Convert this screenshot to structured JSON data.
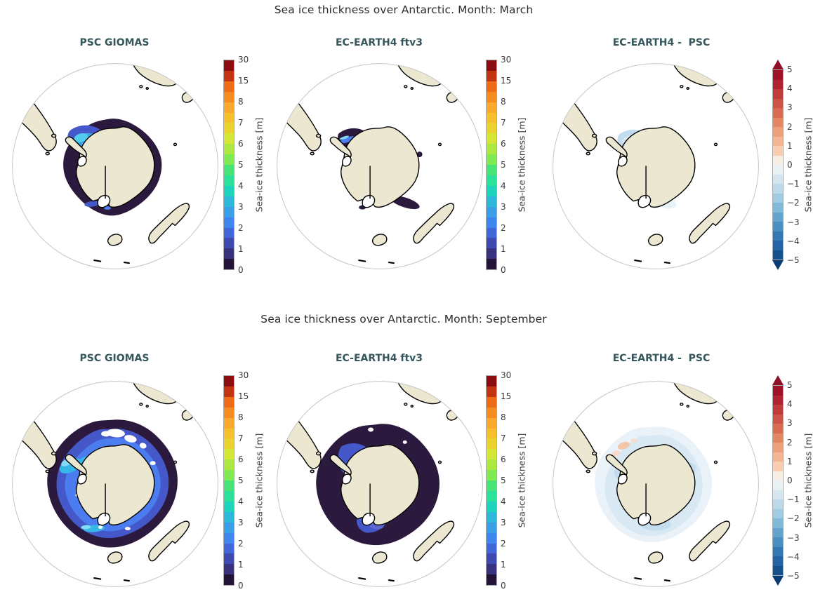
{
  "figure": {
    "rows": [
      {
        "title": "Sea ice thickness over Antarctic. Month: March",
        "panels": [
          {
            "title": "PSC GIOMAS"
          },
          {
            "title": "EC-EARTH4 ftv3"
          },
          {
            "title": "EC-EARTH4 -  PSC"
          }
        ]
      },
      {
        "title": "Sea ice thickness over Antarctic. Month: September",
        "panels": [
          {
            "title": "PSC GIOMAS"
          },
          {
            "title": "EC-EARTH4 ftv3"
          },
          {
            "title": "EC-EARTH4 -  PSC"
          }
        ]
      }
    ]
  },
  "colorbars": {
    "thickness": {
      "label": "Sea-ice thickness [m]",
      "ticks_bottom_to_top": [
        "0",
        "1",
        "2",
        "3",
        "4",
        "5",
        "6",
        "7",
        "8",
        "15",
        "30"
      ],
      "segments_bottom_to_top": [
        "#241339",
        "#37317e",
        "#3e4ab0",
        "#4166d8",
        "#3f86f0",
        "#3b9fe8",
        "#2cb8da",
        "#1fd4bc",
        "#2ce29b",
        "#49e478",
        "#7eeb52",
        "#abe941",
        "#d4e636",
        "#ead32f",
        "#f6c02c",
        "#fba92c",
        "#f68b20",
        "#ee6c18",
        "#c53411",
        "#8c0d0f"
      ]
    },
    "difference": {
      "label": "Sea-ice thickness [m]",
      "ticks_bottom_to_top": [
        "−5",
        "−4",
        "−3",
        "−2",
        "−1",
        "0",
        "1",
        "2",
        "3",
        "4",
        "5"
      ],
      "segments_bottom_to_top": [
        "#15508f",
        "#2364a7",
        "#3379b5",
        "#4890c1",
        "#62a4cd",
        "#81b9d8",
        "#a0cbe2",
        "#bcd9ea",
        "#d5e6f0",
        "#e9f0f4",
        "#f6ece2",
        "#f9cdb2",
        "#f5b592",
        "#efa07a",
        "#e58663",
        "#da6b53",
        "#cd5346",
        "#c03c3b",
        "#b02431",
        "#9f1228"
      ],
      "arrow_top": "#8e0f26",
      "arrow_bottom": "#0a3c73"
    }
  },
  "map_colors": {
    "ocean": "#ffffff",
    "land": "#ece7d1",
    "coastline": "#000000",
    "globe_edge": "#c6c6c6",
    "white": "#ffffff",
    "ice_dark": "#2c1a3e",
    "ice_blue_dark": "#4558c9",
    "ice_indigo_light": "#5b68d2",
    "ice_blue": "#4b7df0",
    "ice_sky": "#3fa9e8",
    "ice_cyan": "#35b8e6",
    "ice_cyan_bright": "#52cdf0",
    "ice_cyan_light": "#7fdcf4",
    "diff_blue_light": "#c3dcee",
    "diff_blue_faint": "#d9e9f4",
    "diff_blue_vfaint": "#e9f2f8",
    "diff_orange": "#f4c6a8",
    "diff_orange_light": "#f8dccb",
    "title_color": "#2d2d2d",
    "panel_title_color": "#35565a",
    "tick_color": "#3a3a3a"
  },
  "chart_data": [
    {
      "type": "heatmap",
      "subtype": "south-polar-stereographic-map",
      "row": 1,
      "panel": 1,
      "title": "PSC GIOMAS",
      "month": "March",
      "variable": "Sea-ice thickness [m]",
      "colorbar_ticks": [
        0,
        1,
        2,
        3,
        4,
        5,
        6,
        7,
        8,
        15,
        30
      ],
      "colorbar_range": [
        0,
        30
      ],
      "depicted": "Thin 0–0.5 m sea-ice ring hugging the Antarctic coastline; 2–5 m ice pocket in the western Weddell Sea next to the peninsula; small 1–2 m streaks near the Ross Sea coast."
    },
    {
      "type": "heatmap",
      "subtype": "south-polar-stereographic-map",
      "row": 1,
      "panel": 2,
      "title": "EC-EARTH4 ftv3",
      "month": "March",
      "variable": "Sea-ice thickness [m]",
      "colorbar_ticks": [
        0,
        1,
        2,
        3,
        4,
        5,
        6,
        7,
        8,
        15,
        30
      ],
      "colorbar_range": [
        0,
        30
      ],
      "depicted": "Sparse 0–0.5 m coastal ice patches only: a Weddell Sea pocket with a 1–3 m streak, plus small 0–0.5 m patches along the Ross/Amundsen and East Antarctic coasts."
    },
    {
      "type": "heatmap",
      "subtype": "south-polar-stereographic-map",
      "row": 1,
      "panel": 3,
      "title": "EC-EARTH4 -  PSC",
      "month": "March",
      "variable": "Sea-ice thickness difference [m]",
      "colorbar_ticks": [
        -5,
        -4,
        -3,
        -2,
        -1,
        0,
        1,
        2,
        3,
        4,
        5
      ],
      "colorbar_range": [
        -5,
        5
      ],
      "depicted": "Difference near zero almost everywhere; about −1 m in the western Weddell Sea and about −0.5 m near the Ross Sea coast (model thinner than GIOMAS)."
    },
    {
      "type": "heatmap",
      "subtype": "south-polar-stereographic-map",
      "row": 2,
      "panel": 1,
      "title": "PSC GIOMAS",
      "month": "September",
      "variable": "Sea-ice thickness [m]",
      "colorbar_ticks": [
        0,
        1,
        2,
        3,
        4,
        5,
        6,
        7,
        8,
        15,
        30
      ],
      "colorbar_range": [
        0,
        30
      ],
      "depicted": "Full winter ice pack: 0–0.5 m outer margin, broad 1–2 m band, 2 m interior, 3–4 m near the Antarctic Peninsula / western Weddell Sea and in the Ross Sea; open-water gaps at the northern ice edge."
    },
    {
      "type": "heatmap",
      "subtype": "south-polar-stereographic-map",
      "row": 2,
      "panel": 2,
      "title": "EC-EARTH4 ftv3",
      "month": "September",
      "variable": "Sea-ice thickness [m]",
      "colorbar_ticks": [
        0,
        1,
        2,
        3,
        4,
        5,
        6,
        7,
        8,
        15,
        30
      ],
      "colorbar_range": [
        0,
        30
      ],
      "depicted": "Full winter ice pack mostly 0–0.5 m thick, with 1–2 m pockets in the Weddell Sea and Ross Sea sectors."
    },
    {
      "type": "heatmap",
      "subtype": "south-polar-stereographic-map",
      "row": 2,
      "panel": 3,
      "title": "EC-EARTH4 -  PSC",
      "month": "September",
      "variable": "Sea-ice thickness difference [m]",
      "colorbar_ticks": [
        -5,
        -4,
        -3,
        -2,
        -1,
        0,
        1,
        2,
        3,
        4,
        5
      ],
      "colorbar_range": [
        -5,
        5
      ],
      "depicted": "Mostly −0.5 to −1 m across the whole pack (model thinner than GIOMAS), with small ≈ +0.5 m patches north-west of the Antarctic Peninsula."
    }
  ]
}
